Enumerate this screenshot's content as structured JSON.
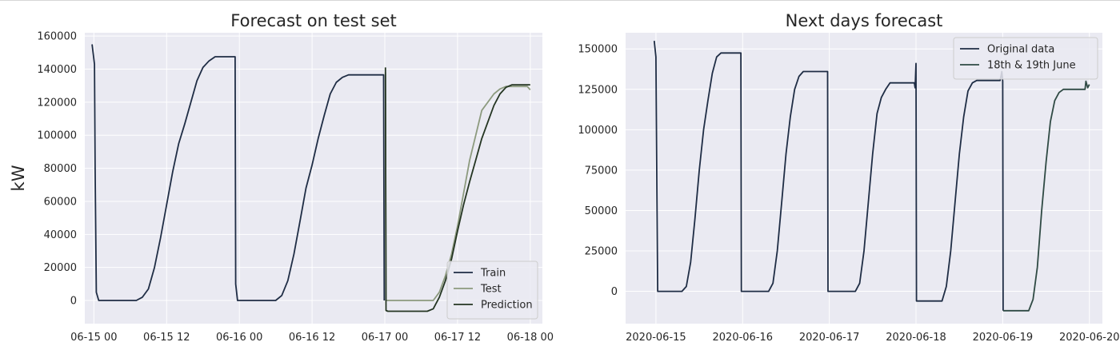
{
  "colors": {
    "axes_bg": "#eaeaf2",
    "grid": "#ffffff",
    "train": "#1f2d45",
    "test": "#8c9a7e",
    "prediction": "#243522",
    "original": "#1f2d45",
    "forecast": "#2f4a44"
  },
  "chart_data": [
    {
      "type": "line",
      "title": "Forecast on test set",
      "xlabel": "",
      "ylabel": "kW",
      "x_unit": "hours since 06-15 00",
      "xlim": [
        -1.5,
        74
      ],
      "ylim": [
        -14000,
        162000
      ],
      "xticks": [
        {
          "value": 0,
          "label": "06-15 00"
        },
        {
          "value": 12,
          "label": "06-15 12"
        },
        {
          "value": 24,
          "label": "06-16 00"
        },
        {
          "value": 36,
          "label": "06-16 12"
        },
        {
          "value": 48,
          "label": "06-17 00"
        },
        {
          "value": 60,
          "label": "06-17 12"
        },
        {
          "value": 72,
          "label": "06-18 00"
        }
      ],
      "yticks": [
        0,
        20000,
        40000,
        60000,
        80000,
        100000,
        120000,
        140000,
        160000
      ],
      "ytick_labels": [
        "0",
        "20000",
        "40000",
        "60000",
        "80000",
        "100000",
        "120000",
        "140000",
        "160000"
      ],
      "grid": true,
      "legend": {
        "position": "bottom-right"
      },
      "series": [
        {
          "name": "Train",
          "color": "#1f2d45",
          "points": [
            [
              -0.3,
              155000
            ],
            [
              0.1,
              143000
            ],
            [
              0.2,
              80000
            ],
            [
              0.4,
              5000
            ],
            [
              0.8,
              0
            ],
            [
              7,
              0
            ],
            [
              8,
              2000
            ],
            [
              9,
              7000
            ],
            [
              10,
              20000
            ],
            [
              11,
              38000
            ],
            [
              12,
              58000
            ],
            [
              13,
              78000
            ],
            [
              14,
              95000
            ],
            [
              15,
              107000
            ],
            [
              16,
              120000
            ],
            [
              17,
              133000
            ],
            [
              18,
              141000
            ],
            [
              19,
              145000
            ],
            [
              20,
              147500
            ],
            [
              23.3,
              147500
            ],
            [
              23.4,
              10000
            ],
            [
              23.7,
              0
            ],
            [
              30,
              0
            ],
            [
              31,
              3000
            ],
            [
              32,
              12000
            ],
            [
              33,
              28000
            ],
            [
              34,
              48000
            ],
            [
              35,
              68000
            ],
            [
              36,
              82000
            ],
            [
              37,
              98000
            ],
            [
              38,
              112000
            ],
            [
              39,
              125000
            ],
            [
              40,
              132000
            ],
            [
              41,
              135000
            ],
            [
              42,
              136500
            ],
            [
              47.8,
              136500
            ],
            [
              47.9,
              0
            ]
          ]
        },
        {
          "name": "Test",
          "color": "#8c9a7e",
          "points": [
            [
              48.1,
              138000
            ],
            [
              48.2,
              0
            ],
            [
              48.5,
              0
            ],
            [
              56,
              0
            ],
            [
              57,
              5000
            ],
            [
              58,
              15000
            ],
            [
              59,
              28000
            ],
            [
              60,
              45000
            ],
            [
              61,
              65000
            ],
            [
              62,
              85000
            ],
            [
              63,
              100000
            ],
            [
              64,
              115000
            ],
            [
              65,
              120000
            ],
            [
              66,
              125000
            ],
            [
              67,
              128000
            ],
            [
              68,
              129500
            ],
            [
              71.5,
              129500
            ],
            [
              72,
              127500
            ]
          ]
        },
        {
          "name": "Prediction",
          "color": "#243522",
          "points": [
            [
              48.1,
              141000
            ],
            [
              48.2,
              -6000
            ],
            [
              48.5,
              -6500
            ],
            [
              55,
              -6500
            ],
            [
              56,
              -5000
            ],
            [
              57,
              2000
            ],
            [
              58,
              12000
            ],
            [
              59,
              25000
            ],
            [
              60,
              42000
            ],
            [
              61,
              58000
            ],
            [
              62,
              72000
            ],
            [
              63,
              85000
            ],
            [
              64,
              98000
            ],
            [
              65,
              108000
            ],
            [
              66,
              118000
            ],
            [
              67,
              125000
            ],
            [
              68,
              129000
            ],
            [
              69,
              130500
            ],
            [
              72,
              130500
            ]
          ]
        }
      ]
    },
    {
      "type": "line",
      "title": "Next days forecast",
      "xlabel": "",
      "ylabel": "",
      "x_unit": "days since 2020-06-15",
      "xlim": [
        -0.35,
        5.15
      ],
      "ylim": [
        -20000,
        160000
      ],
      "xticks": [
        {
          "value": 0,
          "label": "2020-06-15"
        },
        {
          "value": 1,
          "label": "2020-06-16"
        },
        {
          "value": 2,
          "label": "2020-06-17"
        },
        {
          "value": 3,
          "label": "2020-06-18"
        },
        {
          "value": 4,
          "label": "2020-06-19"
        },
        {
          "value": 5,
          "label": "2020-06-20"
        }
      ],
      "yticks": [
        0,
        25000,
        50000,
        75000,
        100000,
        125000,
        150000
      ],
      "ytick_labels": [
        "0",
        "25000",
        "50000",
        "75000",
        "100000",
        "125000",
        "150000"
      ],
      "grid": true,
      "legend": {
        "position": "top-right"
      },
      "series": [
        {
          "name": "Original data",
          "color": "#1f2d45",
          "points": [
            [
              -0.02,
              155000
            ],
            [
              0,
              145000
            ],
            [
              0.01,
              70000
            ],
            [
              0.02,
              0
            ],
            [
              0.3,
              0
            ],
            [
              0.35,
              3000
            ],
            [
              0.4,
              18000
            ],
            [
              0.45,
              45000
            ],
            [
              0.5,
              75000
            ],
            [
              0.55,
              100000
            ],
            [
              0.6,
              118000
            ],
            [
              0.65,
              135000
            ],
            [
              0.7,
              145000
            ],
            [
              0.75,
              147500
            ],
            [
              0.98,
              147500
            ],
            [
              0.985,
              0
            ],
            [
              1.3,
              0
            ],
            [
              1.35,
              5000
            ],
            [
              1.4,
              25000
            ],
            [
              1.45,
              55000
            ],
            [
              1.5,
              85000
            ],
            [
              1.55,
              108000
            ],
            [
              1.6,
              125000
            ],
            [
              1.65,
              133000
            ],
            [
              1.7,
              136000
            ],
            [
              1.98,
              136000
            ],
            [
              1.985,
              0
            ],
            [
              2.3,
              0
            ],
            [
              2.35,
              5000
            ],
            [
              2.4,
              25000
            ],
            [
              2.45,
              55000
            ],
            [
              2.5,
              85000
            ],
            [
              2.55,
              110000
            ],
            [
              2.6,
              120000
            ],
            [
              2.65,
              125000
            ],
            [
              2.7,
              129000
            ],
            [
              2.98,
              129000
            ],
            [
              2.99,
              126000
            ],
            [
              3.0,
              141000
            ],
            [
              3.005,
              -6000
            ],
            [
              3.3,
              -6000
            ],
            [
              3.35,
              3000
            ],
            [
              3.4,
              25000
            ],
            [
              3.45,
              55000
            ],
            [
              3.5,
              85000
            ],
            [
              3.55,
              108000
            ],
            [
              3.6,
              124000
            ],
            [
              3.65,
              129000
            ],
            [
              3.7,
              130500
            ],
            [
              3.97,
              130500
            ],
            [
              3.98,
              133000
            ],
            [
              3.99,
              136000
            ],
            [
              4.0,
              130000
            ],
            [
              4.005,
              -12000
            ]
          ]
        },
        {
          "name": "18th & 19th June",
          "color": "#2f4a44",
          "points": [
            [
              4.005,
              -12000
            ],
            [
              4.3,
              -12000
            ],
            [
              4.35,
              -5000
            ],
            [
              4.4,
              15000
            ],
            [
              4.45,
              50000
            ],
            [
              4.5,
              80000
            ],
            [
              4.55,
              105000
            ],
            [
              4.6,
              118000
            ],
            [
              4.65,
              123000
            ],
            [
              4.7,
              125000
            ],
            [
              4.95,
              125000
            ],
            [
              4.96,
              130000
            ],
            [
              4.98,
              126000
            ],
            [
              5.0,
              128000
            ]
          ]
        }
      ]
    }
  ]
}
